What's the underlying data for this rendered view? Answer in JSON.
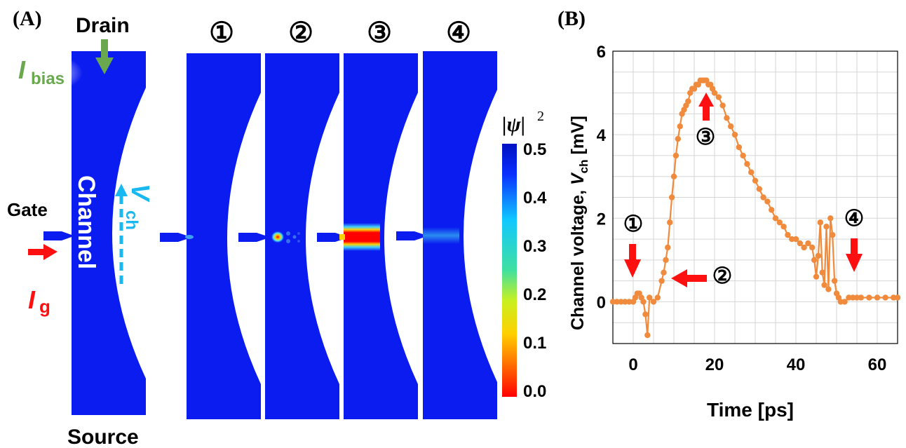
{
  "panel_a": {
    "label": "(A)",
    "drain_label": "Drain",
    "ibias_main": "I",
    "ibias_sub": "bias",
    "gate_label": "Gate",
    "ig_main": "I",
    "ig_sub": "g",
    "channel_label": "Channel",
    "source_label": "Source",
    "vch_main": "V",
    "vch_sub": "ch",
    "snapshot_labels": [
      "①",
      "②",
      "③",
      "④"
    ],
    "colorbar": {
      "title": "|ψ|",
      "title_sup": "2",
      "ticks": [
        "0.5",
        "0.4",
        "0.3",
        "0.2",
        "0.1",
        "0.0"
      ]
    },
    "colors": {
      "superconductor": "#0a1cf0",
      "drain_arrow": "#6aa84f",
      "gate_arrow": "#ff1010",
      "vch_arrow": "#1ab8f0"
    }
  },
  "panel_b": {
    "label": "(B)",
    "markers": [
      "①",
      "②",
      "③",
      "④"
    ]
  },
  "chart_data": {
    "type": "line",
    "xlabel": "Time [ps]",
    "ylabel_main": "Channel voltage, ",
    "ylabel_var": "V",
    "ylabel_sub": "ch",
    "ylabel_unit": " [mV]",
    "xlim": [
      -5,
      65
    ],
    "ylim": [
      -1,
      6
    ],
    "xticks": [
      "0",
      "20",
      "40",
      "60"
    ],
    "yticks": [
      "0",
      "2",
      "4",
      "6"
    ],
    "grid": true,
    "color": "#f08a3c",
    "series": [
      {
        "x": [
          -5,
          -4,
          -3,
          -2,
          -1,
          0,
          0.5,
          1,
          1.5,
          2,
          2.5,
          3,
          3.5,
          4,
          5,
          6,
          7,
          7.5,
          8,
          8.5,
          9,
          9.5,
          10,
          10.5,
          11,
          11.5,
          12,
          12.5,
          13,
          13.5,
          14,
          14.5,
          15,
          15.5,
          16,
          16.5,
          17,
          17.5,
          18,
          18.5,
          19,
          19.5,
          20,
          21,
          22,
          23,
          24,
          25,
          26,
          27,
          28,
          29,
          30,
          31,
          32,
          33,
          34,
          35,
          36,
          37,
          38,
          39,
          40,
          41,
          42,
          43,
          44,
          44.5,
          45,
          45.5,
          46,
          46.5,
          47,
          47.5,
          48,
          48.5,
          49,
          49.5,
          50,
          50.5,
          51,
          52,
          53,
          54,
          55,
          56,
          58,
          60,
          62,
          64,
          65
        ],
        "y": [
          0.0,
          0.0,
          0.0,
          0.0,
          0.0,
          0.0,
          0.1,
          0.2,
          0.2,
          0.1,
          0.0,
          -0.3,
          -0.8,
          0.1,
          0.0,
          0.1,
          0.5,
          0.7,
          1.0,
          1.3,
          1.9,
          2.5,
          3.0,
          3.5,
          3.9,
          4.2,
          4.5,
          4.6,
          4.7,
          4.8,
          5.0,
          5.1,
          5.1,
          5.2,
          5.2,
          5.3,
          5.3,
          5.3,
          5.3,
          5.2,
          5.2,
          5.1,
          5.0,
          4.9,
          4.7,
          4.4,
          4.2,
          4.0,
          3.7,
          3.5,
          3.3,
          3.1,
          2.9,
          2.7,
          2.5,
          2.4,
          2.2,
          2.0,
          1.9,
          1.8,
          1.6,
          1.5,
          1.5,
          1.4,
          1.3,
          1.4,
          1.3,
          1.0,
          0.6,
          1.1,
          1.9,
          0.7,
          0.4,
          1.8,
          0.3,
          2.0,
          1.6,
          0.5,
          0.2,
          0.1,
          0.0,
          0.0,
          0.1,
          0.1,
          0.1,
          0.1,
          0.1,
          0.1,
          0.1,
          0.1,
          0.1
        ]
      }
    ]
  }
}
